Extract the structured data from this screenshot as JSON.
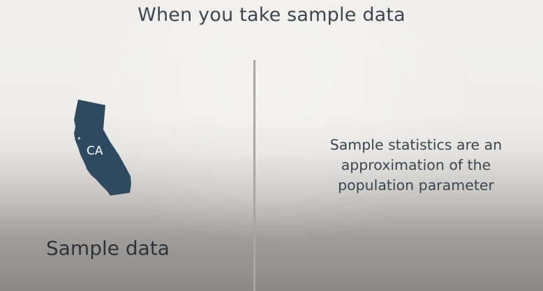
{
  "slide": {
    "title": "When you take sample data"
  },
  "left_panel": {
    "map_icon": "california-state-icon",
    "map_color": "#2e4a61",
    "state_label": "CA",
    "caption": "Sample data"
  },
  "right_panel": {
    "text_lines": [
      "Sample statistics are an",
      "approximation of the",
      "population parameter"
    ]
  }
}
